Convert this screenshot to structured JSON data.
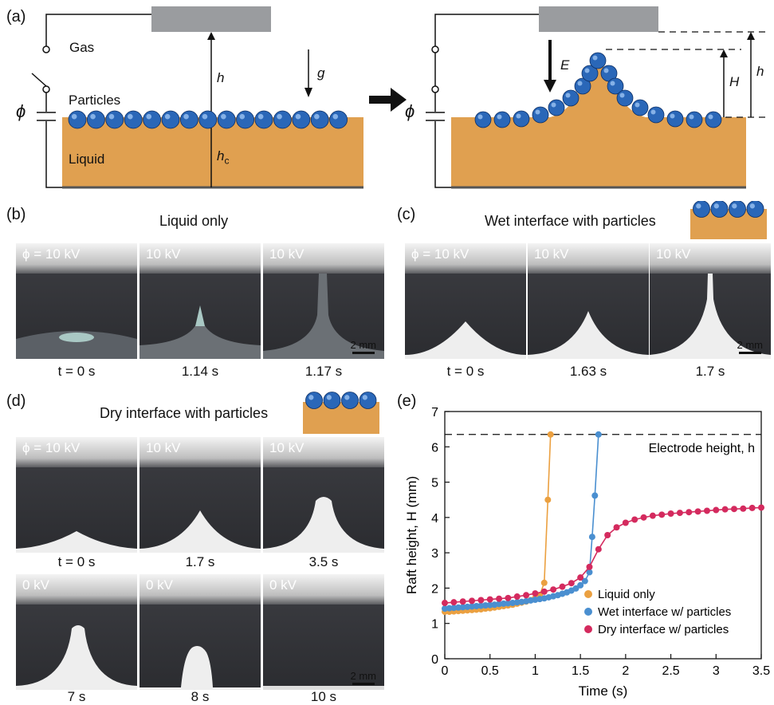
{
  "panel_a": {
    "label": "(a)",
    "gas": "Gas",
    "particles": "Particles",
    "liquid": "Liquid",
    "phi": "ϕ",
    "h": "h",
    "hc": "h",
    "hc_sub": "c",
    "g": "g",
    "E": "E",
    "H": "H",
    "h_right": "h",
    "colors": {
      "liquid": "#e0a050",
      "particle": "#2a67b8",
      "electrode": "#9a9c9f"
    }
  },
  "panel_b": {
    "label": "(b)",
    "title": "Liquid only",
    "frames": [
      {
        "voltage": "ϕ = 10 kV",
        "time": "t = 0 s"
      },
      {
        "voltage": "10 kV",
        "time": "1.14 s"
      },
      {
        "voltage": "10 kV",
        "time": "1.17 s"
      }
    ],
    "scale": "2 mm"
  },
  "panel_c": {
    "label": "(c)",
    "title": "Wet interface with particles",
    "frames": [
      {
        "voltage": "ϕ = 10 kV",
        "time": "t = 0 s"
      },
      {
        "voltage": "10 kV",
        "time": "1.63 s"
      },
      {
        "voltage": "10 kV",
        "time": "1.7 s"
      }
    ],
    "scale": "2 mm"
  },
  "panel_d": {
    "label": "(d)",
    "title": "Dry interface with particles",
    "frames": [
      {
        "voltage": "ϕ = 10 kV",
        "time": "t = 0 s"
      },
      {
        "voltage": "10 kV",
        "time": "1.7 s"
      },
      {
        "voltage": "10 kV",
        "time": "3.5 s"
      },
      {
        "voltage": "0 kV",
        "time": "7 s"
      },
      {
        "voltage": "0 kV",
        "time": "8 s"
      },
      {
        "voltage": "0 kV",
        "time": "10 s"
      }
    ],
    "scale": "2 mm"
  },
  "panel_e": {
    "label": "(e)"
  },
  "chart_data": {
    "type": "scatter",
    "xlabel": "Time (s)",
    "ylabel": "Raft height, H (mm)",
    "xlim": [
      0,
      3.5
    ],
    "ylim": [
      0,
      7
    ],
    "xticks": [
      "0",
      "0.5",
      "1",
      "1.5",
      "2",
      "2.5",
      "3",
      "3.5"
    ],
    "yticks": [
      "0",
      "1",
      "2",
      "3",
      "4",
      "5",
      "6",
      "7"
    ],
    "reference_line": {
      "label": "Electrode height, h",
      "y": 6.35
    },
    "legend_position": "bottom-right",
    "series": [
      {
        "name": "Liquid only",
        "color": "#eba040",
        "x": [
          0,
          0.05,
          0.1,
          0.15,
          0.2,
          0.25,
          0.3,
          0.35,
          0.4,
          0.45,
          0.5,
          0.55,
          0.6,
          0.65,
          0.7,
          0.75,
          0.8,
          0.85,
          0.9,
          0.95,
          1.0,
          1.05,
          1.1,
          1.14,
          1.17
        ],
        "y": [
          1.33,
          1.33,
          1.34,
          1.35,
          1.36,
          1.37,
          1.38,
          1.39,
          1.4,
          1.42,
          1.43,
          1.45,
          1.47,
          1.49,
          1.51,
          1.53,
          1.56,
          1.59,
          1.62,
          1.66,
          1.72,
          1.8,
          2.15,
          4.5,
          6.35
        ]
      },
      {
        "name": "Wet interface w/ particles",
        "color": "#4a8fd0",
        "x": [
          0,
          0.05,
          0.1,
          0.15,
          0.2,
          0.25,
          0.3,
          0.35,
          0.4,
          0.45,
          0.5,
          0.55,
          0.6,
          0.65,
          0.7,
          0.75,
          0.8,
          0.85,
          0.9,
          0.95,
          1.0,
          1.05,
          1.1,
          1.15,
          1.2,
          1.25,
          1.3,
          1.35,
          1.4,
          1.45,
          1.5,
          1.55,
          1.6,
          1.63,
          1.66,
          1.7
        ],
        "y": [
          1.42,
          1.43,
          1.44,
          1.45,
          1.46,
          1.47,
          1.48,
          1.49,
          1.5,
          1.51,
          1.52,
          1.53,
          1.55,
          1.56,
          1.57,
          1.58,
          1.6,
          1.61,
          1.63,
          1.65,
          1.67,
          1.69,
          1.71,
          1.74,
          1.77,
          1.8,
          1.84,
          1.88,
          1.93,
          1.99,
          2.08,
          2.2,
          2.45,
          3.45,
          4.62,
          6.35
        ]
      },
      {
        "name": "Dry interface w/ particles",
        "color": "#d42a5e",
        "x": [
          0,
          0.1,
          0.2,
          0.3,
          0.4,
          0.5,
          0.6,
          0.7,
          0.8,
          0.9,
          1.0,
          1.1,
          1.2,
          1.3,
          1.4,
          1.5,
          1.6,
          1.7,
          1.8,
          1.9,
          2.0,
          2.1,
          2.2,
          2.3,
          2.4,
          2.5,
          2.6,
          2.7,
          2.8,
          2.9,
          3.0,
          3.1,
          3.2,
          3.3,
          3.4,
          3.5
        ],
        "y": [
          1.58,
          1.6,
          1.62,
          1.64,
          1.66,
          1.68,
          1.7,
          1.72,
          1.76,
          1.8,
          1.85,
          1.9,
          1.96,
          2.04,
          2.14,
          2.3,
          2.6,
          3.1,
          3.5,
          3.72,
          3.85,
          3.94,
          4.0,
          4.05,
          4.08,
          4.11,
          4.13,
          4.15,
          4.17,
          4.19,
          4.21,
          4.23,
          4.24,
          4.25,
          4.27,
          4.28
        ]
      }
    ]
  }
}
